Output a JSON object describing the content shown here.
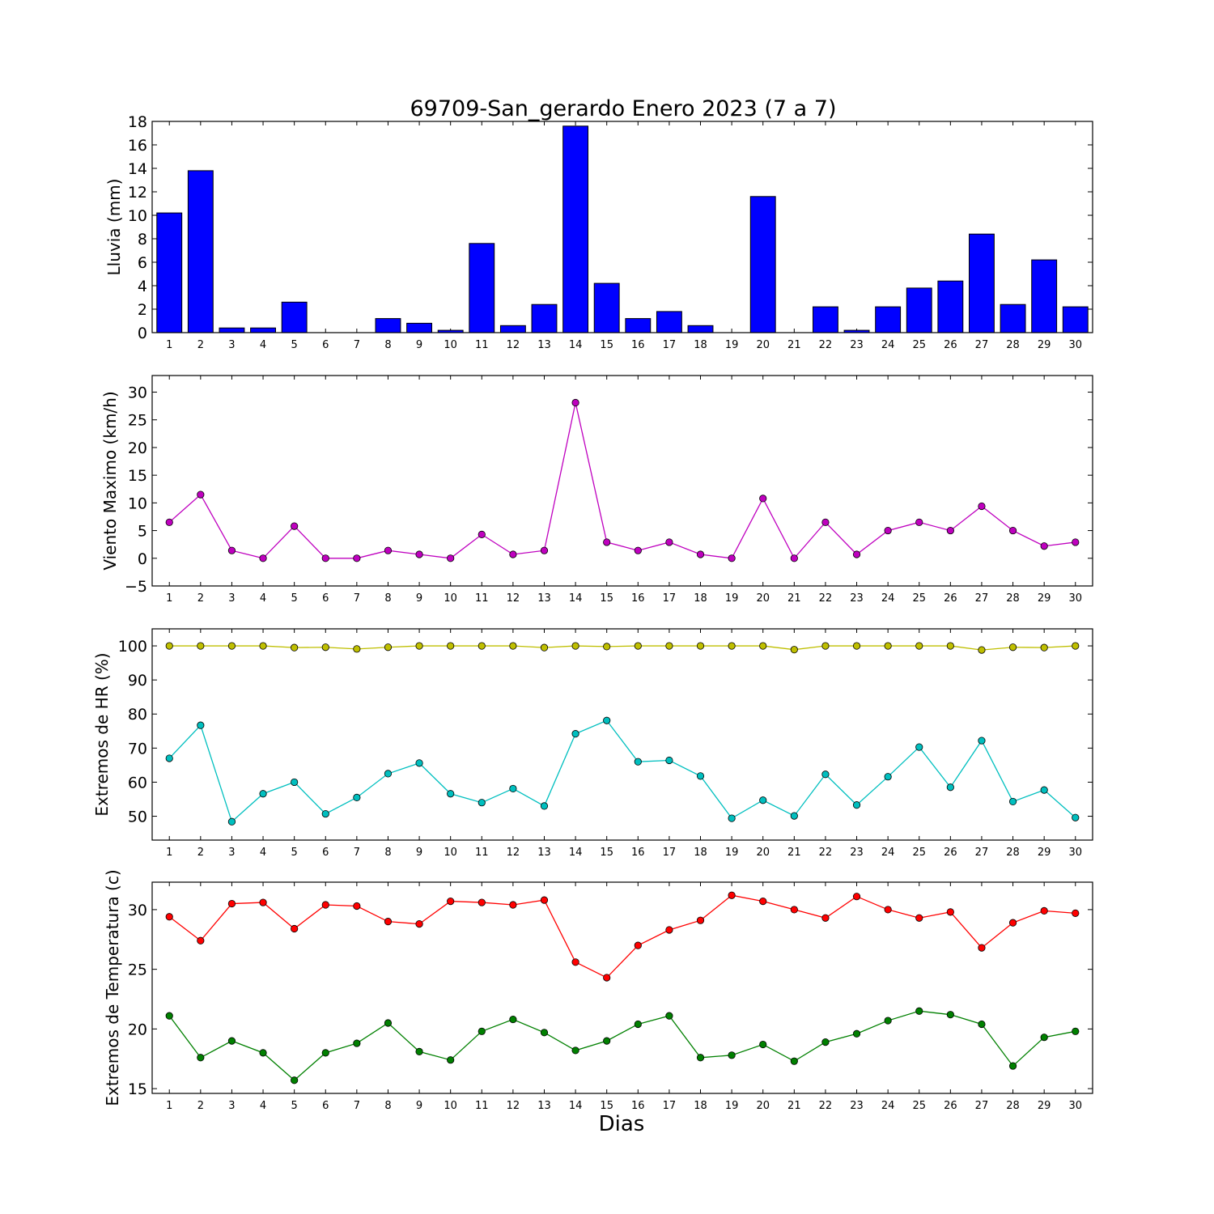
{
  "figure_title": "69709-San_gerardo Enero 2023  (7 a 7)",
  "xlabel": "Dias",
  "colors": {
    "rain": "#0000ff",
    "wind": "#bf00bf",
    "hr_max": "#bfbf00",
    "hr_min": "#00bfbf",
    "t_max": "#ff0000",
    "t_min": "#008000"
  },
  "chart_data": [
    {
      "type": "bar",
      "title": "69709-San_gerardo Enero 2023  (7 a 7)",
      "ylabel": "Lluvia (mm)",
      "ylim": [
        0,
        18
      ],
      "yticks": [
        0,
        2,
        4,
        6,
        8,
        10,
        12,
        14,
        16,
        18
      ],
      "categories": [
        1,
        2,
        3,
        4,
        5,
        6,
        7,
        8,
        9,
        10,
        11,
        12,
        13,
        14,
        15,
        16,
        17,
        18,
        19,
        20,
        21,
        22,
        23,
        24,
        25,
        26,
        27,
        28,
        29,
        30
      ],
      "values": [
        10.2,
        13.8,
        0.4,
        0.4,
        2.6,
        0,
        0,
        1.2,
        0.8,
        0.2,
        7.6,
        0.6,
        2.4,
        17.6,
        4.2,
        1.2,
        1.8,
        0.6,
        0,
        11.6,
        0,
        2.2,
        0.2,
        2.2,
        3.8,
        4.4,
        8.4,
        2.4,
        6.2,
        2.2
      ]
    },
    {
      "type": "line",
      "ylabel": "Viento Maximo (km/h)",
      "ylim": [
        -5,
        33
      ],
      "yticks": [
        -5,
        0,
        5,
        10,
        15,
        20,
        25,
        30
      ],
      "x": [
        1,
        2,
        3,
        4,
        5,
        6,
        7,
        8,
        9,
        10,
        11,
        12,
        13,
        14,
        15,
        16,
        17,
        18,
        19,
        20,
        21,
        22,
        23,
        24,
        25,
        26,
        27,
        28,
        29,
        30
      ],
      "series": [
        {
          "values": [
            6.5,
            11.5,
            1.4,
            0,
            5.8,
            0,
            0,
            1.4,
            0.7,
            0,
            4.3,
            0.7,
            1.4,
            28.1,
            2.9,
            1.4,
            2.9,
            0.7,
            0,
            10.8,
            0,
            6.5,
            0.7,
            5.0,
            6.5,
            5.0,
            9.4,
            5.0,
            2.2,
            2.9
          ]
        }
      ]
    },
    {
      "type": "line",
      "ylabel": "Extremos de HR (%)",
      "ylim": [
        43,
        105
      ],
      "yticks": [
        50,
        60,
        70,
        80,
        90,
        100
      ],
      "x": [
        1,
        2,
        3,
        4,
        5,
        6,
        7,
        8,
        9,
        10,
        11,
        12,
        13,
        14,
        15,
        16,
        17,
        18,
        19,
        20,
        21,
        22,
        23,
        24,
        25,
        26,
        27,
        28,
        29,
        30
      ],
      "series": [
        {
          "values": [
            100,
            100,
            100,
            100,
            99.5,
            99.6,
            99.1,
            99.6,
            100,
            100,
            100,
            100,
            99.5,
            100,
            99.8,
            100,
            100,
            100,
            100,
            100,
            98.9,
            100,
            100,
            100,
            100,
            100,
            98.8,
            99.6,
            99.5,
            100
          ]
        },
        {
          "values": [
            67.0,
            76.7,
            48.4,
            56.6,
            60.0,
            50.7,
            55.5,
            62.5,
            65.6,
            56.6,
            54.0,
            58.1,
            53.0,
            74.2,
            78.1,
            66.0,
            66.4,
            61.8,
            49.4,
            54.7,
            50.1,
            62.3,
            53.3,
            61.6,
            70.3,
            58.5,
            72.2,
            54.3,
            57.7,
            49.6
          ]
        }
      ]
    },
    {
      "type": "line",
      "ylabel": "Extremos de Temperatura (c)",
      "ylim": [
        14.6,
        32.3
      ],
      "yticks": [
        15,
        20,
        25,
        30
      ],
      "x": [
        1,
        2,
        3,
        4,
        5,
        6,
        7,
        8,
        9,
        10,
        11,
        12,
        13,
        14,
        15,
        16,
        17,
        18,
        19,
        20,
        21,
        22,
        23,
        24,
        25,
        26,
        27,
        28,
        29,
        30
      ],
      "series": [
        {
          "values": [
            29.4,
            27.4,
            30.5,
            30.6,
            28.4,
            30.4,
            30.3,
            29.0,
            28.8,
            30.7,
            30.6,
            30.4,
            30.8,
            25.6,
            24.3,
            27.0,
            28.3,
            29.1,
            31.2,
            30.7,
            30.0,
            29.3,
            31.1,
            30.0,
            29.3,
            29.8,
            26.8,
            28.9,
            29.9,
            29.7
          ]
        },
        {
          "values": [
            21.1,
            17.6,
            19.0,
            18.0,
            15.7,
            18.0,
            18.8,
            20.5,
            18.1,
            17.4,
            19.8,
            20.8,
            19.7,
            18.2,
            19.0,
            20.4,
            21.1,
            17.6,
            17.8,
            18.7,
            17.3,
            18.9,
            19.6,
            20.7,
            21.5,
            21.2,
            20.4,
            16.9,
            19.3,
            19.8
          ]
        }
      ]
    }
  ]
}
